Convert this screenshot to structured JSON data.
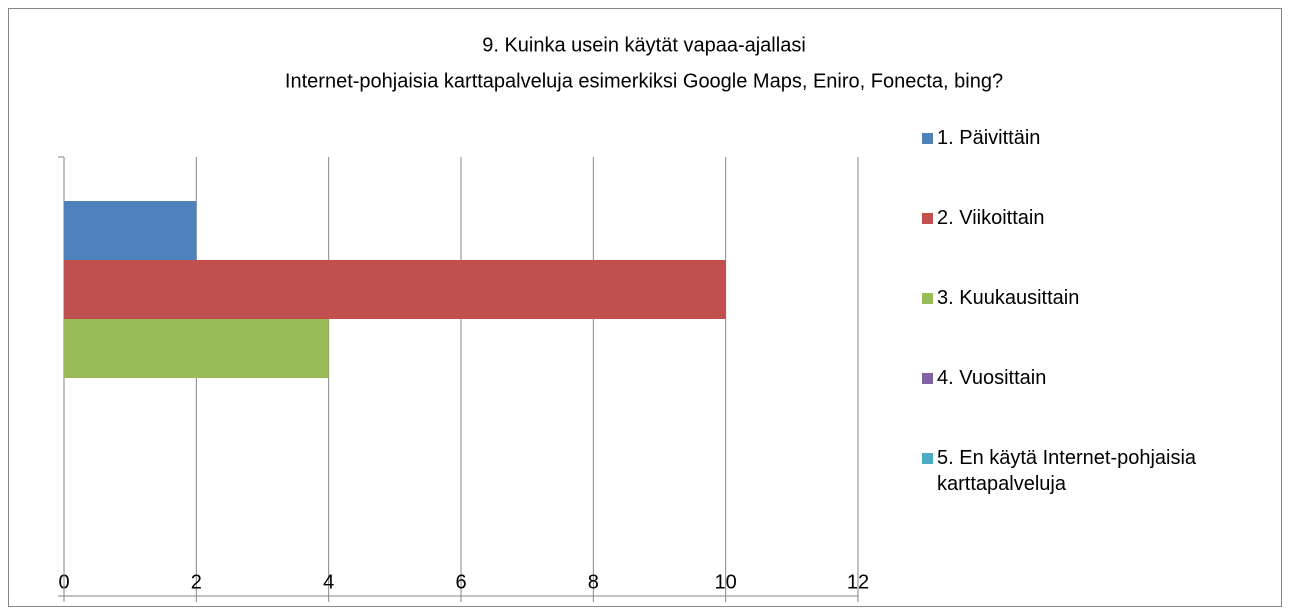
{
  "chart_data": {
    "type": "bar",
    "orientation": "horizontal",
    "title": [
      "9. Kuinka usein käytät vapaa-ajallasi",
      "Internet-pohjaisia karttapalveluja esimerkiksi Google Maps, Eniro, Fonecta, bing?"
    ],
    "categories": [
      null
    ],
    "series": [
      {
        "name": "1. Päivittäin",
        "color": "#4f81bd",
        "values": [
          2
        ]
      },
      {
        "name": "2. Viikoittain",
        "color": "#c0504d",
        "values": [
          10
        ]
      },
      {
        "name": "3. Kuukausittain",
        "color": "#9bbb59",
        "values": [
          4
        ]
      },
      {
        "name": "4. Vuosittain",
        "color": "#8064a2",
        "values": [
          0
        ]
      },
      {
        "name": "5. En käytä Internet-pohjaisia karttapalveluja",
        "color": "#4bacc6",
        "values": [
          0
        ]
      }
    ],
    "xlim": [
      0,
      12
    ],
    "xticks": [
      0,
      2,
      4,
      6,
      8,
      10,
      12
    ],
    "grid": true,
    "legend": "right"
  }
}
